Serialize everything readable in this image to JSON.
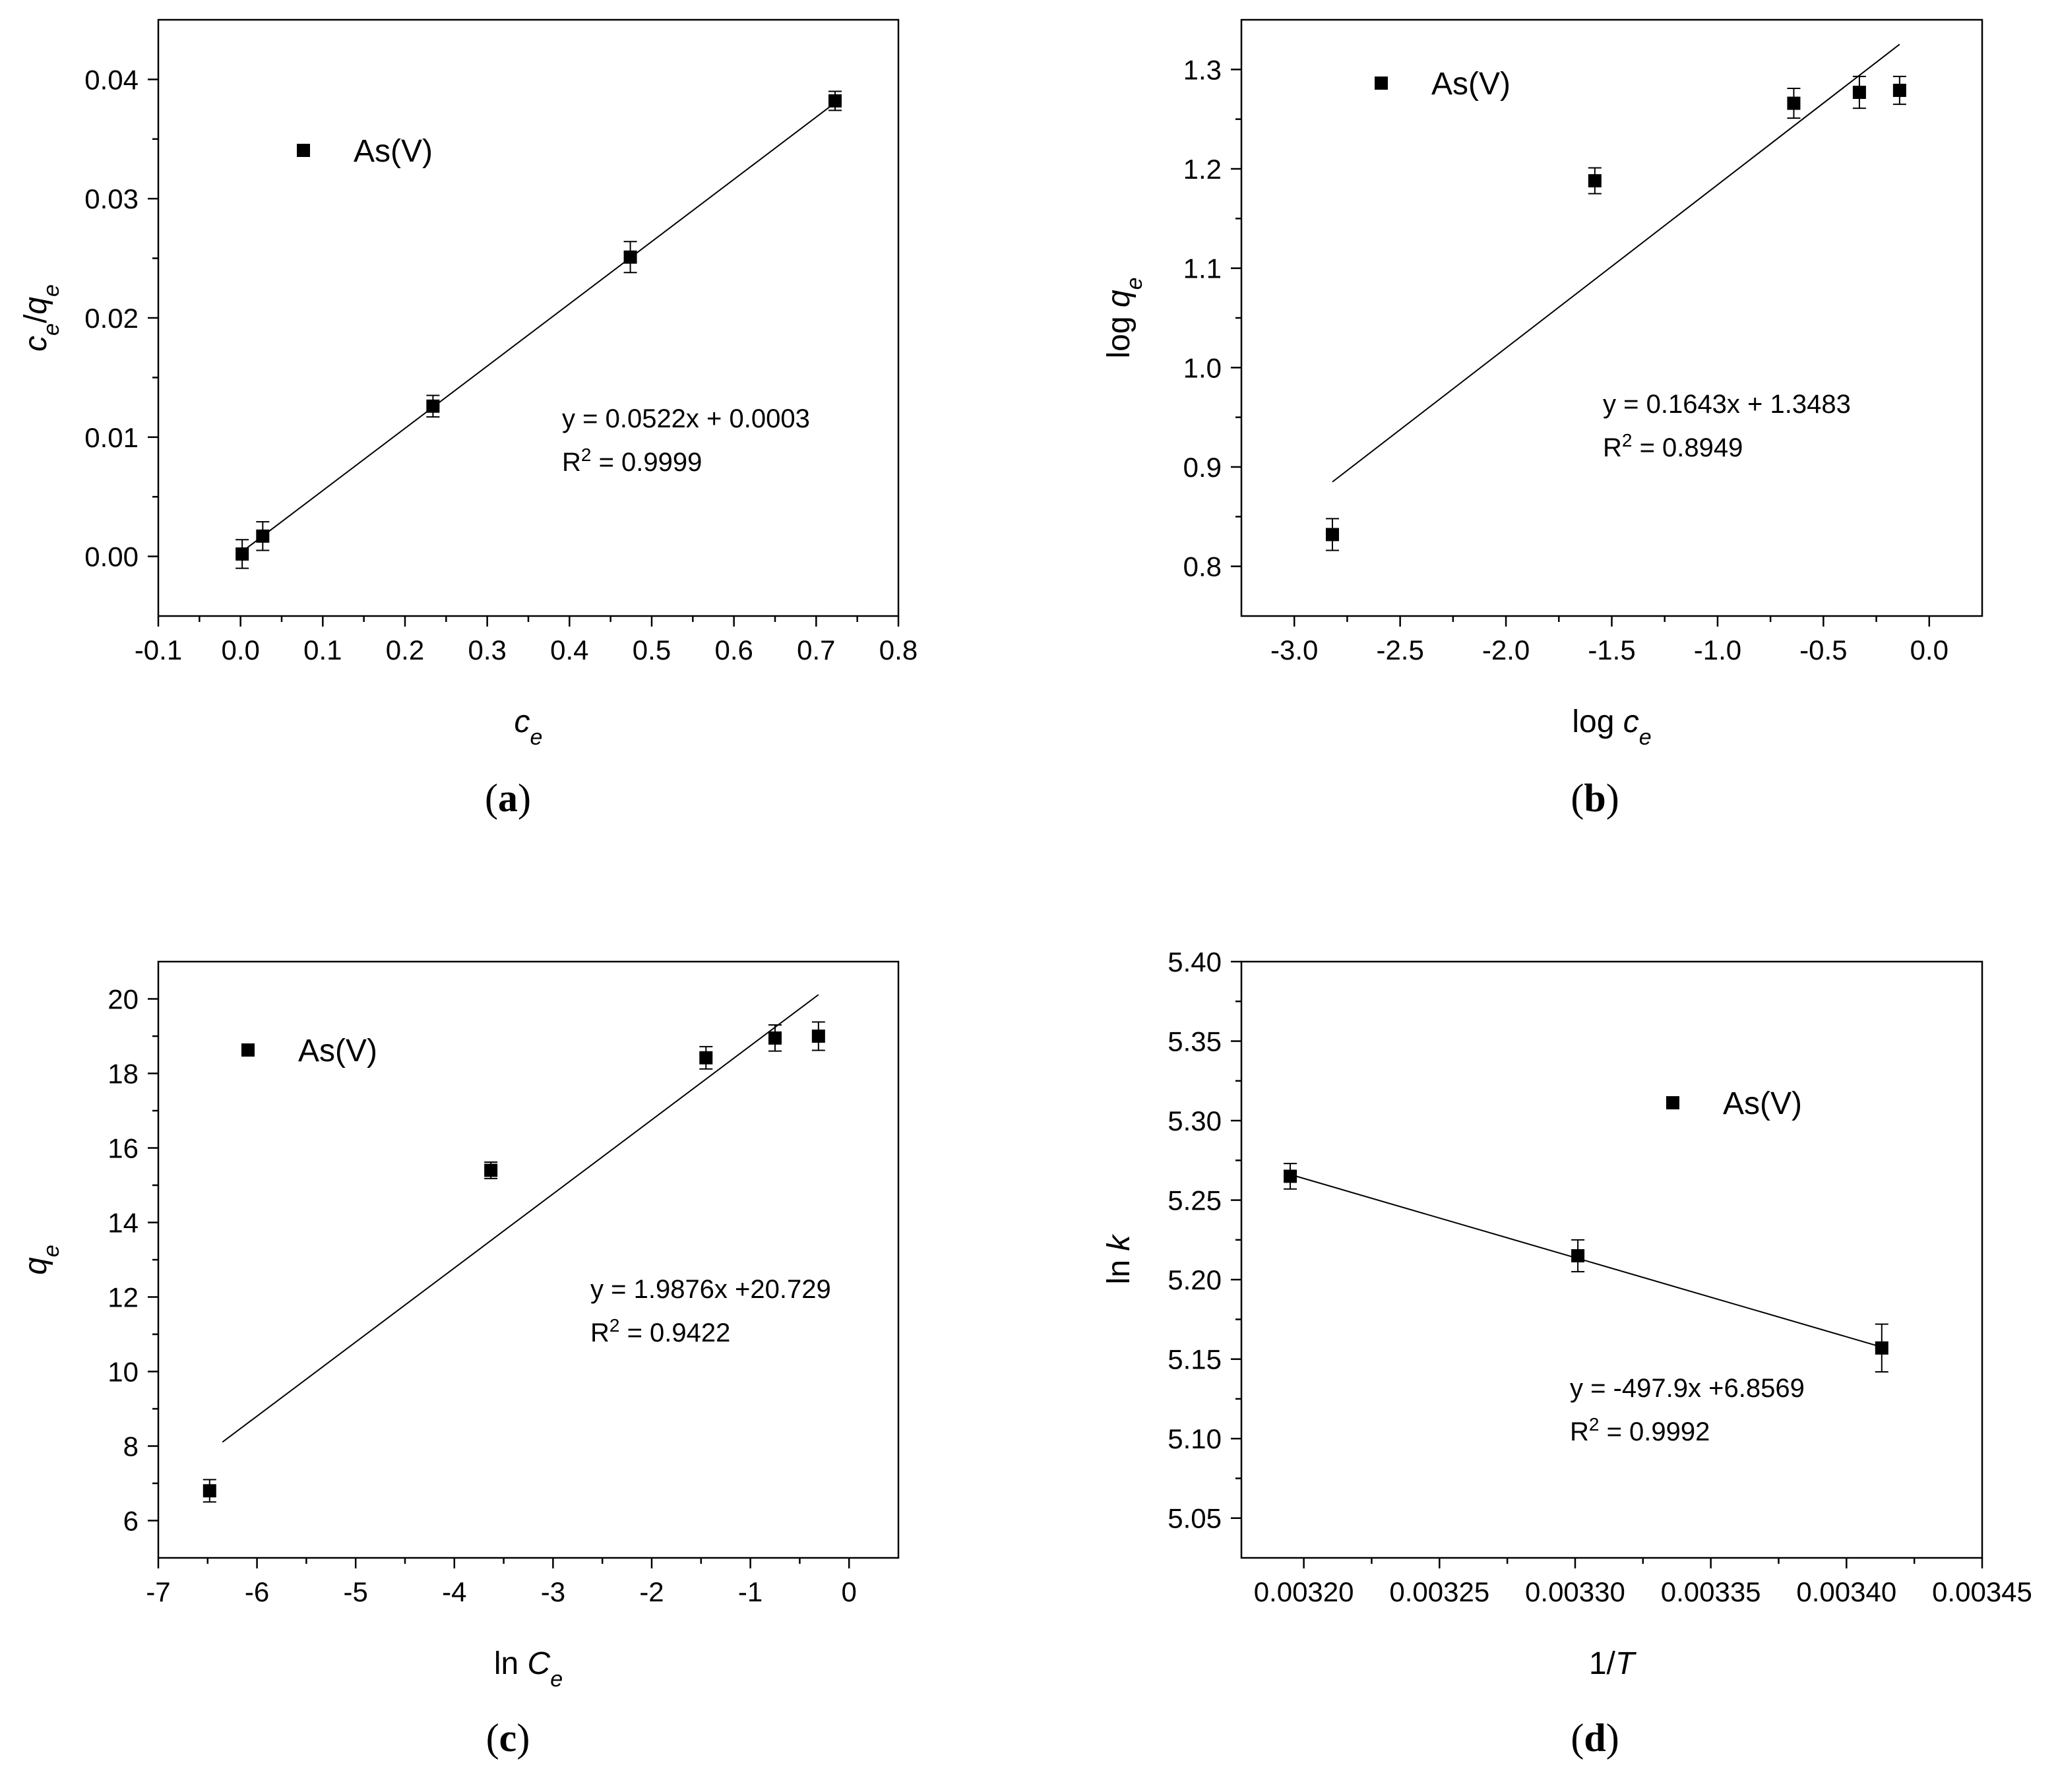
{
  "chart_data": [
    {
      "id": "a",
      "type": "scatter",
      "caption": "a",
      "legend": "As(V)",
      "xlabel": {
        "base": "c",
        "sub": "e"
      },
      "ylabel": {
        "parts": [
          {
            "t": "c",
            "i": true
          },
          {
            "t": "e",
            "sub": true,
            "i": true
          },
          {
            "t": "/"
          },
          {
            "t": "q",
            "i": true
          },
          {
            "t": "e",
            "sub": true,
            "i": true
          }
        ]
      },
      "xlim": [
        -0.1,
        0.8
      ],
      "ylim": [
        -0.005,
        0.045
      ],
      "xticks": [
        -0.1,
        0.0,
        0.1,
        0.2,
        0.3,
        0.4,
        0.5,
        0.6,
        0.7,
        0.8
      ],
      "xtick_labels": [
        "-0.1",
        "0.0",
        "0.1",
        "0.2",
        "0.3",
        "0.4",
        "0.5",
        "0.6",
        "0.7",
        "0.8"
      ],
      "yticks": [
        0.0,
        0.01,
        0.02,
        0.03,
        0.04
      ],
      "ytick_labels": [
        "0.00",
        "0.01",
        "0.02",
        "0.03",
        "0.04"
      ],
      "points": [
        {
          "x": 0.002,
          "y": 0.0002,
          "err": 0.0012
        },
        {
          "x": 0.027,
          "y": 0.0017,
          "err": 0.0012
        },
        {
          "x": 0.234,
          "y": 0.0126,
          "err": 0.0009
        },
        {
          "x": 0.474,
          "y": 0.0251,
          "err": 0.0013
        },
        {
          "x": 0.723,
          "y": 0.0382,
          "err": 0.0008
        }
      ],
      "fit": {
        "slope": 0.0522,
        "intercept": 0.0003,
        "x_range": [
          0.0,
          0.723
        ]
      },
      "equation": "y = 0.0522x + 0.0003",
      "r2_label": "R",
      "r2_value": " = 0.9999"
    },
    {
      "id": "b",
      "type": "scatter",
      "caption": "b",
      "legend": "As(V)",
      "xlabel": {
        "base": "log ",
        "var": "c",
        "sub": "e"
      },
      "ylabel": {
        "parts": [
          {
            "t": "log "
          },
          {
            "t": "q",
            "i": true
          },
          {
            "t": "e",
            "sub": true,
            "i": true
          }
        ]
      },
      "xlim": [
        -3.25,
        0.25
      ],
      "ylim": [
        0.75,
        1.35
      ],
      "xticks": [
        -3.0,
        -2.5,
        -2.0,
        -1.5,
        -1.0,
        -0.5,
        0.0
      ],
      "xtick_labels": [
        "-3.0",
        "-2.5",
        "-2.0",
        "-1.5",
        "-1.0",
        "-0.5",
        "0.0"
      ],
      "yticks": [
        0.8,
        0.9,
        1.0,
        1.1,
        1.2,
        1.3
      ],
      "ytick_labels": [
        "0.8",
        "0.9",
        "1.0",
        "1.1",
        "1.2",
        "1.3"
      ],
      "points": [
        {
          "x": -2.82,
          "y": 0.832,
          "err": 0.016
        },
        {
          "x": -1.58,
          "y": 1.188,
          "err": 0.013
        },
        {
          "x": -0.64,
          "y": 1.266,
          "err": 0.015
        },
        {
          "x": -0.33,
          "y": 1.277,
          "err": 0.016
        },
        {
          "x": -0.14,
          "y": 1.279,
          "err": 0.014
        }
      ],
      "fit": {
        "slope": 0.1643,
        "intercept": 1.3483,
        "x_range": [
          -2.82,
          -0.14
        ]
      },
      "equation": "y = 0.1643x + 1.3483",
      "r2_label": "R",
      "r2_value": " = 0.8949"
    },
    {
      "id": "c",
      "type": "scatter",
      "caption": "c",
      "legend": "As(V)",
      "xlabel": {
        "base": "ln ",
        "var": "C",
        "sub": "e"
      },
      "ylabel": {
        "parts": [
          {
            "t": "q",
            "i": true
          },
          {
            "t": "e",
            "sub": true,
            "i": true
          }
        ]
      },
      "xlim": [
        -7,
        0.5
      ],
      "ylim": [
        5,
        21
      ],
      "xticks": [
        -7,
        -6,
        -5,
        -4,
        -3,
        -2,
        -1,
        0
      ],
      "xtick_labels": [
        "-7",
        "-6",
        "-5",
        "-4",
        "-3",
        "-2",
        "-1",
        "0"
      ],
      "yticks": [
        6,
        8,
        10,
        12,
        14,
        16,
        18,
        20
      ],
      "ytick_labels": [
        "6",
        "8",
        "10",
        "12",
        "14",
        "16",
        "18",
        "20"
      ],
      "points": [
        {
          "x": -6.48,
          "y": 6.8,
          "err": 0.3
        },
        {
          "x": -3.63,
          "y": 15.4,
          "err": 0.22
        },
        {
          "x": -1.45,
          "y": 18.42,
          "err": 0.3
        },
        {
          "x": -0.75,
          "y": 18.95,
          "err": 0.35
        },
        {
          "x": -0.31,
          "y": 19.0,
          "err": 0.38
        }
      ],
      "fit": {
        "slope": 1.9876,
        "intercept": 20.729,
        "x_range": [
          -6.35,
          -0.31
        ]
      },
      "equation": "y = 1.9876x +20.729",
      "r2_label": "R",
      "r2_value": " = 0.9422"
    },
    {
      "id": "d",
      "type": "scatter",
      "caption": "d",
      "legend": "As(V)",
      "xlabel": {
        "base": "1/",
        "var": "T",
        "sub": ""
      },
      "ylabel": {
        "parts": [
          {
            "t": "ln "
          },
          {
            "t": "k",
            "i": true
          }
        ]
      },
      "xlim": [
        0.003177,
        0.00345
      ],
      "ylim": [
        5.025,
        5.4
      ],
      "xticks": [
        0.0032,
        0.00325,
        0.0033,
        0.00335,
        0.0034,
        0.00345
      ],
      "xtick_labels": [
        "0.00320",
        "0.00325",
        "0.00330",
        "0.00335",
        "0.00340",
        "0.00345"
      ],
      "yticks": [
        5.05,
        5.1,
        5.15,
        5.2,
        5.25,
        5.3,
        5.35,
        5.4
      ],
      "ytick_labels": [
        "5.05",
        "5.10",
        "5.15",
        "5.20",
        "5.25",
        "5.30",
        "5.35",
        "5.40"
      ],
      "points": [
        {
          "x": 0.003195,
          "y": 5.265,
          "err": 0.008
        },
        {
          "x": 0.003301,
          "y": 5.215,
          "err": 0.01
        },
        {
          "x": 0.003413,
          "y": 5.157,
          "err": 0.015
        }
      ],
      "fit": {
        "slope": -497.9,
        "intercept": 6.8569,
        "x_range": [
          0.003195,
          0.003413
        ]
      },
      "equation": "y = -497.9x +6.8569",
      "r2_label": "R",
      "r2_value": " = 0.9992"
    }
  ]
}
